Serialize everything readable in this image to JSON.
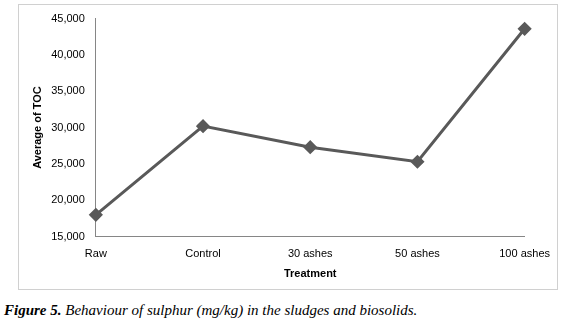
{
  "chart_data": {
    "type": "line",
    "caption": "Figure 5. Behaviour of sulphur (mg/kg) in the sludges and biosolids.",
    "x_label": "Treatment",
    "y_label": "Average of TOC",
    "categories": [
      "Raw",
      "Control",
      "30 ashes",
      "50 ashes",
      "100 ashes"
    ],
    "values": [
      18000,
      30200,
      27300,
      25300,
      43600
    ],
    "color": "#595959",
    "marker": "diamond",
    "ylim": [
      15000,
      45000
    ],
    "yticks": [
      {
        "value": 15000,
        "label": "15,000"
      },
      {
        "value": 20000,
        "label": "20,000"
      },
      {
        "value": 25000,
        "label": "25,000"
      },
      {
        "value": 30000,
        "label": "30,000"
      },
      {
        "value": 35000,
        "label": "35,000"
      },
      {
        "value": 40000,
        "label": "40,000"
      },
      {
        "value": 45000,
        "label": "45,000"
      }
    ],
    "grid": false
  }
}
